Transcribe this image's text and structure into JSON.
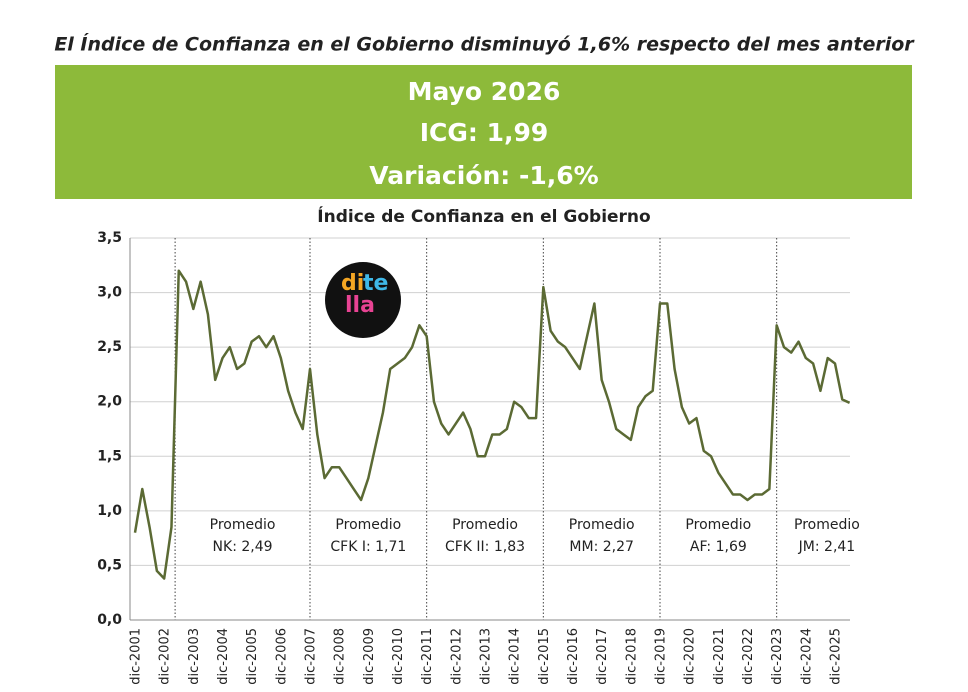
{
  "header": {
    "title": "El Índice de Confianza en el Gobierno disminuyó 1,6% respecto del mes anterior",
    "box": [
      "Mayo 2026",
      "ICG: 1,99",
      "Variación: -1,6%"
    ]
  },
  "logo": [
    "di",
    "te",
    "lla"
  ],
  "chart_data": {
    "type": "line",
    "title": "Índice de Confianza en el Gobierno",
    "categories": [
      "dic-2001",
      null,
      null,
      null,
      "dic-2002",
      null,
      null,
      null,
      "dic-2003",
      null,
      null,
      null,
      "dic-2004",
      null,
      null,
      null,
      "dic-2005",
      null,
      null,
      null,
      "dic-2006",
      null,
      null,
      null,
      "dic-2007",
      null,
      null,
      null,
      "dic-2008",
      null,
      null,
      null,
      "dic-2009",
      null,
      null,
      null,
      "dic-2010",
      null,
      null,
      null,
      "dic-2011",
      null,
      null,
      null,
      "dic-2012",
      null,
      null,
      null,
      "dic-2013",
      null,
      null,
      null,
      "dic-2014",
      null,
      null,
      null,
      "dic-2015",
      null,
      null,
      null,
      "dic-2016",
      null,
      null,
      null,
      "dic-2017",
      null,
      null,
      null,
      "dic-2018",
      null,
      null,
      null,
      "dic-2019",
      null,
      null,
      null,
      "dic-2020",
      null,
      null,
      null,
      "dic-2021",
      null,
      null,
      null,
      "dic-2022",
      null,
      null,
      null,
      "dic-2023",
      null,
      null,
      null,
      "dic-2024",
      null,
      null,
      null,
      "dic-2025",
      null,
      null
    ],
    "values": [
      0.8,
      1.2,
      0.85,
      0.45,
      0.38,
      0.85,
      3.2,
      3.1,
      2.85,
      3.1,
      2.8,
      2.2,
      2.4,
      2.5,
      2.3,
      2.35,
      2.55,
      2.6,
      2.5,
      2.6,
      2.4,
      2.1,
      1.9,
      1.75,
      2.3,
      1.7,
      1.3,
      1.4,
      1.4,
      1.3,
      1.2,
      1.1,
      1.3,
      1.6,
      1.9,
      2.3,
      2.35,
      2.4,
      2.5,
      2.7,
      2.6,
      2.0,
      1.8,
      1.7,
      1.8,
      1.9,
      1.75,
      1.5,
      1.5,
      1.7,
      1.7,
      1.75,
      2.0,
      1.95,
      1.85,
      1.85,
      3.05,
      2.65,
      2.55,
      2.5,
      2.4,
      2.3,
      2.6,
      2.9,
      2.2,
      2.0,
      1.75,
      1.7,
      1.65,
      1.95,
      2.05,
      2.1,
      2.9,
      2.9,
      2.3,
      1.95,
      1.8,
      1.85,
      1.55,
      1.5,
      1.35,
      1.25,
      1.15,
      1.15,
      1.1,
      1.15,
      1.15,
      1.2,
      2.7,
      2.5,
      2.45,
      2.55,
      2.4,
      2.35,
      2.1,
      2.4,
      2.35,
      2.02,
      1.99
    ],
    "color": "#5b6a34",
    "ylim": [
      0,
      3.5
    ],
    "yticks": [
      {
        "value": 0,
        "label": "0,0"
      },
      {
        "value": 0.5,
        "label": "0,5"
      },
      {
        "value": 1,
        "label": "1,0"
      },
      {
        "value": 1.5,
        "label": "1,5"
      },
      {
        "value": 2,
        "label": "2,0"
      },
      {
        "value": 2.5,
        "label": "2,5"
      },
      {
        "value": 3,
        "label": "3,0"
      },
      {
        "value": 3.5,
        "label": "3,5"
      }
    ],
    "grid": true,
    "annotations": [
      [
        "Promedio",
        "NK: 2,49"
      ],
      [
        "Promedio",
        "CFK I: 1,71"
      ],
      [
        "Promedio",
        "CFK II: 1,83"
      ],
      [
        "Promedio",
        "MM: 2,27"
      ],
      [
        "Promedio",
        "AF: 1,69"
      ],
      [
        "Promedio",
        "JM: 2,41"
      ]
    ]
  }
}
